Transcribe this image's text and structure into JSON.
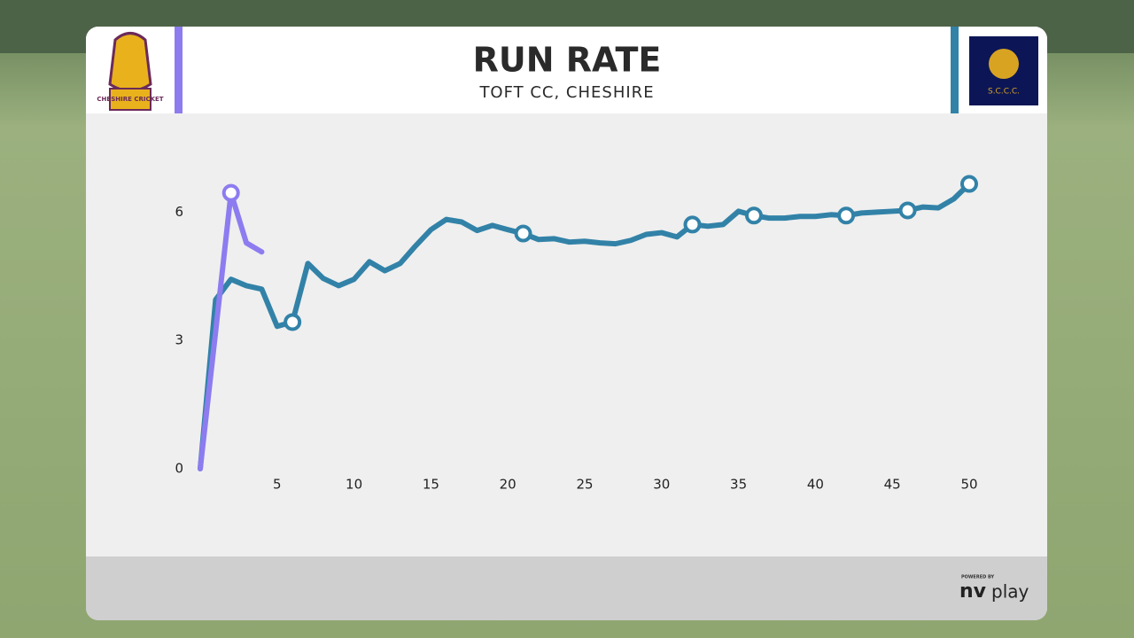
{
  "header": {
    "title": "RUN RATE",
    "subtitle": "TOFT CC, CHESHIRE",
    "left_logo": "CHESHIRE CRICKET",
    "right_logo": "S.C.C.C."
  },
  "footer": {
    "powered_by": "POWERED BY",
    "brand_a": "nv",
    "brand_b": "play"
  },
  "chart_data": {
    "type": "line",
    "xlim": [
      0,
      50
    ],
    "ylim": [
      0,
      7.5
    ],
    "xticks": [
      5,
      10,
      15,
      20,
      25,
      30,
      35,
      40,
      45,
      50
    ],
    "yticks": [
      0,
      3,
      6
    ],
    "series": [
      {
        "color": "#3282a8",
        "x": [
          0,
          1,
          2,
          3,
          4,
          5,
          6,
          7,
          8,
          9,
          10,
          11,
          12,
          13,
          14,
          15,
          16,
          17,
          18,
          19,
          20,
          21,
          22,
          23,
          24,
          25,
          26,
          27,
          28,
          29,
          30,
          31,
          32,
          33,
          34,
          35,
          36,
          37,
          38,
          39,
          40,
          41,
          42,
          43,
          44,
          45,
          46,
          47,
          48,
          49,
          50
        ],
        "values": [
          0,
          3.95,
          4.43,
          4.28,
          4.2,
          3.33,
          3.43,
          4.8,
          4.45,
          4.28,
          4.43,
          4.84,
          4.63,
          4.8,
          5.21,
          5.59,
          5.83,
          5.77,
          5.57,
          5.69,
          5.59,
          5.5,
          5.36,
          5.38,
          5.3,
          5.32,
          5.28,
          5.26,
          5.34,
          5.48,
          5.52,
          5.42,
          5.71,
          5.67,
          5.71,
          6.02,
          5.92,
          5.86,
          5.86,
          5.9,
          5.9,
          5.94,
          5.92,
          5.98,
          6.0,
          6.02,
          6.04,
          6.12,
          6.1,
          6.31,
          6.66
        ],
        "markers": [
          6,
          21,
          32,
          36,
          42,
          46,
          50
        ]
      },
      {
        "color": "#8c7cf0",
        "x": [
          0,
          1,
          2,
          3,
          4
        ],
        "values": [
          0,
          3.2,
          6.45,
          5.28,
          5.07
        ],
        "markers": [
          2
        ]
      }
    ]
  }
}
